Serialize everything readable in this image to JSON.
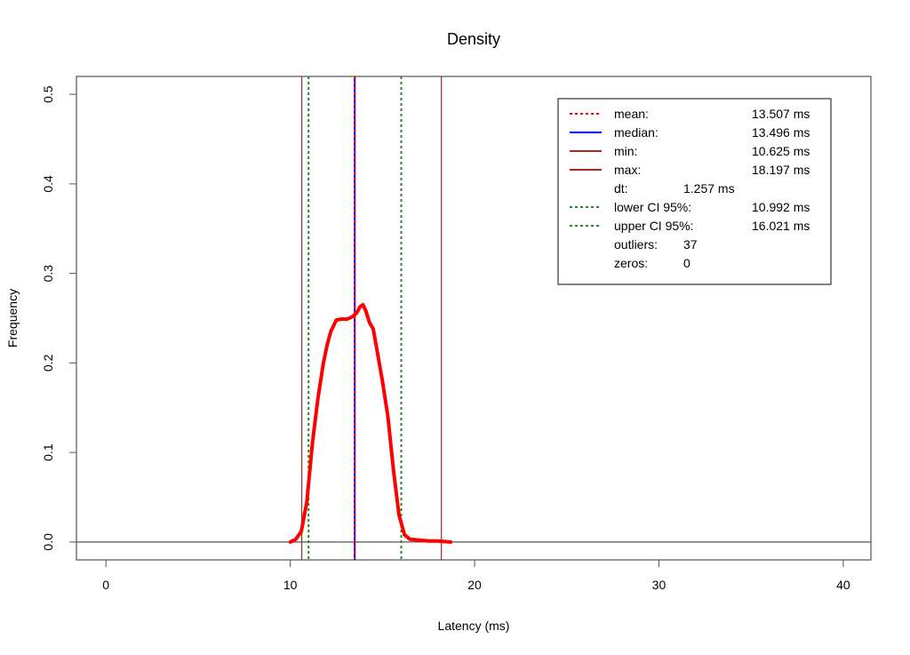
{
  "chart_data": {
    "type": "line",
    "title": "Density",
    "xlabel": "Latency (ms)",
    "ylabel": "Frequency",
    "xlim": [
      -1.6,
      41.5
    ],
    "ylim": [
      -0.02,
      0.52
    ],
    "x_ticks": [
      0,
      10,
      20,
      30,
      40
    ],
    "x_tick_labels": [
      "0",
      "10",
      "20",
      "30",
      "40"
    ],
    "y_ticks": [
      0.0,
      0.1,
      0.2,
      0.3,
      0.4,
      0.5
    ],
    "y_tick_labels": [
      "0.0",
      "0.1",
      "0.2",
      "0.3",
      "0.4",
      "0.5"
    ],
    "grid": false,
    "baseline": 0,
    "colors": {
      "density": "#ff0000",
      "mean": "#ff0000",
      "median": "#0000ff",
      "min": "#a52a2a",
      "max": "#a52a2a",
      "ci": "#228b22",
      "baseline": "#555555"
    },
    "series": [
      {
        "x": [
          10.0,
          10.3,
          10.6,
          10.9,
          11.2,
          11.5,
          11.8,
          12.0,
          12.2,
          12.5,
          12.8,
          13.1,
          13.4,
          13.6,
          13.8,
          13.95,
          14.1,
          14.3,
          14.5,
          14.7,
          15.0,
          15.3,
          15.6,
          15.9,
          16.2,
          16.5,
          17.0,
          17.5,
          18.0,
          18.7
        ],
        "y": [
          0.0,
          0.003,
          0.012,
          0.045,
          0.11,
          0.16,
          0.2,
          0.22,
          0.235,
          0.248,
          0.249,
          0.249,
          0.252,
          0.256,
          0.263,
          0.265,
          0.258,
          0.245,
          0.238,
          0.215,
          0.18,
          0.14,
          0.08,
          0.03,
          0.008,
          0.003,
          0.002,
          0.001,
          0.001,
          0.0
        ]
      }
    ],
    "vlines": [
      {
        "key": "min",
        "x": 10.625,
        "color": "#a52a2a",
        "dash": "solid",
        "width": 1.2
      },
      {
        "key": "lower-ci",
        "x": 10.992,
        "color": "#228b22",
        "dash": "dotted",
        "width": 2
      },
      {
        "key": "median",
        "x": 13.496,
        "color": "#0000ff",
        "dash": "solid",
        "width": 2
      },
      {
        "key": "mean",
        "x": 13.507,
        "color": "#ff0000",
        "dash": "dotted",
        "width": 2
      },
      {
        "key": "upper-ci",
        "x": 16.021,
        "color": "#228b22",
        "dash": "dotted",
        "width": 2
      },
      {
        "key": "max",
        "x": 18.197,
        "color": "#a52a2a",
        "dash": "solid",
        "width": 1.2
      }
    ],
    "legend": {
      "position": "top-right",
      "items": [
        {
          "label": "mean:",
          "value": "13.507 ms",
          "color": "#ff0000",
          "dash": "dotted"
        },
        {
          "label": "median:",
          "value": "13.496 ms",
          "color": "#0000ff",
          "dash": "solid"
        },
        {
          "label": "min:",
          "value": "10.625 ms",
          "color": "#a52a2a",
          "dash": "solid"
        },
        {
          "label": "max:",
          "value": "18.197 ms",
          "color": "#a52a2a",
          "dash": "solid"
        },
        {
          "label": "dt:",
          "value": "1.257 ms",
          "color": "",
          "dash": ""
        },
        {
          "label": "lower CI 95%:",
          "value": "10.992 ms",
          "color": "#228b22",
          "dash": "dotted"
        },
        {
          "label": "upper CI 95%:",
          "value": "16.021 ms",
          "color": "#228b22",
          "dash": "dotted"
        },
        {
          "label": "outliers:",
          "value": "37",
          "color": "",
          "dash": ""
        },
        {
          "label": "zeros:",
          "value": "0",
          "color": "",
          "dash": ""
        }
      ]
    }
  }
}
